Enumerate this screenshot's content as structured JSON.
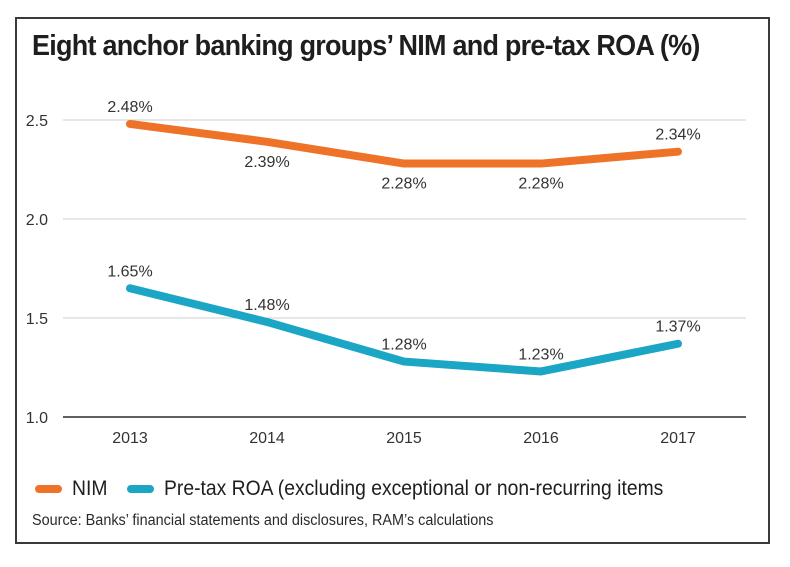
{
  "chart_data": {
    "type": "line",
    "title": "Eight anchor banking groups’ NIM and pre-tax ROA (%)",
    "xlabel": "",
    "ylabel": "",
    "categories": [
      "2013",
      "2014",
      "2015",
      "2016",
      "2017"
    ],
    "ylim": [
      1.0,
      2.5
    ],
    "yticks": [
      1.0,
      1.5,
      2.0,
      2.5
    ],
    "ytick_labels": [
      "1.0",
      "1.5",
      "2.0",
      "2.5"
    ],
    "grid": true,
    "legend_position": "bottom",
    "series": [
      {
        "name": "NIM",
        "color": "#ee7328",
        "values": [
          2.48,
          2.39,
          2.28,
          2.28,
          2.34
        ],
        "labels": [
          "2.48%",
          "2.39%",
          "2.28%",
          "2.28%",
          "2.34%"
        ],
        "label_position": [
          "above",
          "below",
          "below",
          "below",
          "above"
        ]
      },
      {
        "name": "Pre-tax ROA (excluding exceptional or non-recurring items",
        "color": "#1aa6c4",
        "values": [
          1.65,
          1.48,
          1.28,
          1.23,
          1.37
        ],
        "labels": [
          "1.65%",
          "1.48%",
          "1.28%",
          "1.23%",
          "1.37%"
        ],
        "label_position": [
          "above",
          "above",
          "above",
          "above",
          "above"
        ]
      }
    ],
    "source": "Source: Banks’ financial statements and disclosures, RAM’s calculations"
  }
}
